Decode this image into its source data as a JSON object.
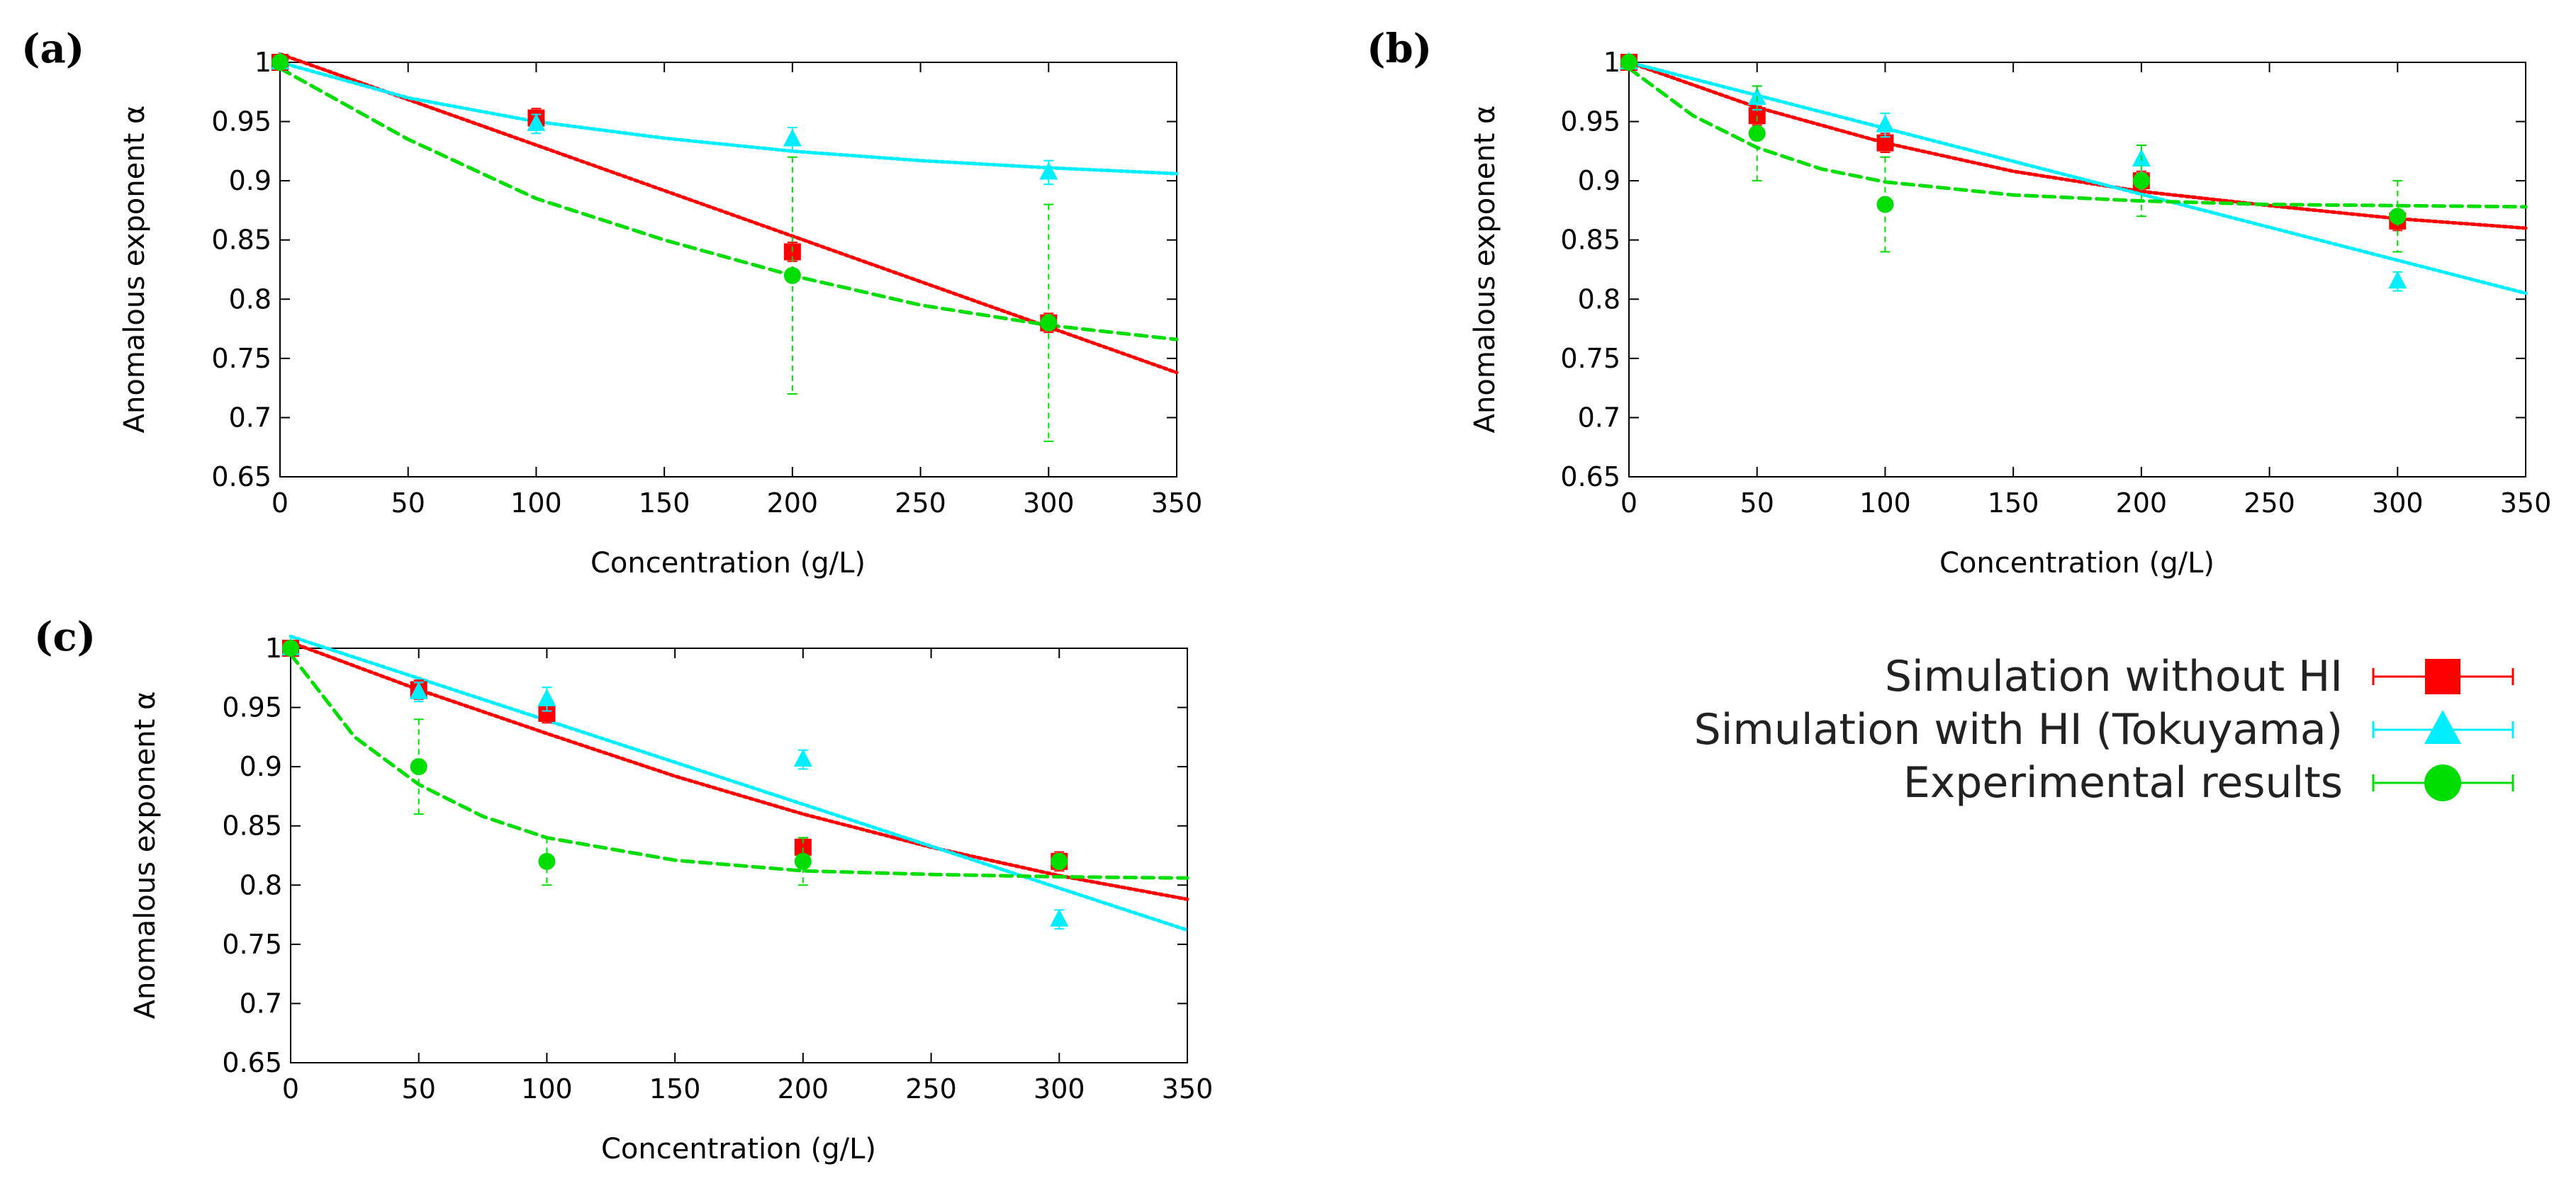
{
  "legend": {
    "entries": [
      {
        "label": "Simulation without HI",
        "color": "#ff0000",
        "marker": "square"
      },
      {
        "label": "Simulation with HI (Tokuyama)",
        "color": "#00eeff",
        "marker": "triangle"
      },
      {
        "label": "Experimental results",
        "color": "#00dd00",
        "marker": "circle"
      }
    ]
  },
  "chart_data": [
    {
      "type": "scatter",
      "panel_label": "(a)",
      "xlabel": "Concentration (g/L)",
      "ylabel": "Anomalous exponent α",
      "xlim": [
        0,
        350
      ],
      "ylim": [
        0.65,
        1
      ],
      "xticks": [
        "0",
        "50",
        "100",
        "150",
        "200",
        "250",
        "300",
        "350"
      ],
      "yticks": [
        "0.65",
        "0.7",
        "0.75",
        "0.8",
        "0.85",
        "0.9",
        "0.95",
        "1"
      ],
      "series": [
        {
          "name": "Simulation without HI",
          "color": "#ff0000",
          "marker": "square",
          "points": [
            [
              0,
              1.0,
              0.003
            ],
            [
              100,
              0.953,
              0.008
            ],
            [
              200,
              0.84,
              0.008
            ],
            [
              300,
              0.78,
              0.008
            ]
          ],
          "fit": [
            [
              0,
              1.007
            ],
            [
              350,
              0.738
            ]
          ],
          "fit_style": "dotted"
        },
        {
          "name": "Simulation with HI (Tokuyama)",
          "color": "#00eeff",
          "marker": "triangle",
          "points": [
            [
              0,
              1.0,
              0.003
            ],
            [
              100,
              0.948,
              0.008
            ],
            [
              200,
              0.935,
              0.01
            ],
            [
              300,
              0.907,
              0.01
            ]
          ],
          "fit": [
            [
              0,
              1.0
            ],
            [
              50,
              0.97
            ],
            [
              100,
              0.95
            ],
            [
              150,
              0.936
            ],
            [
              200,
              0.925
            ],
            [
              250,
              0.917
            ],
            [
              300,
              0.911
            ],
            [
              350,
              0.906
            ]
          ],
          "fit_style": "dotted"
        },
        {
          "name": "Experimental results",
          "color": "#00dd00",
          "marker": "circle",
          "points": [
            [
              0,
              1.0,
              0.0
            ],
            [
              200,
              0.82,
              0.1
            ],
            [
              300,
              0.78,
              0.1
            ]
          ],
          "fit": [
            [
              0,
              0.995
            ],
            [
              50,
              0.935
            ],
            [
              100,
              0.885
            ],
            [
              150,
              0.85
            ],
            [
              200,
              0.82
            ],
            [
              250,
              0.795
            ],
            [
              300,
              0.778
            ],
            [
              350,
              0.766
            ]
          ],
          "fit_style": "dashed"
        }
      ]
    },
    {
      "type": "scatter",
      "panel_label": "(b)",
      "xlabel": "Concentration (g/L)",
      "ylabel": "Anomalous exponent α",
      "xlim": [
        0,
        350
      ],
      "ylim": [
        0.65,
        1
      ],
      "xticks": [
        "0",
        "50",
        "100",
        "150",
        "200",
        "250",
        "300",
        "350"
      ],
      "yticks": [
        "0.65",
        "0.7",
        "0.75",
        "0.8",
        "0.85",
        "0.9",
        "0.95",
        "1"
      ],
      "series": [
        {
          "name": "Simulation without HI",
          "color": "#ff0000",
          "marker": "square",
          "points": [
            [
              0,
              1.0,
              0.003
            ],
            [
              50,
              0.955,
              0.008
            ],
            [
              100,
              0.932,
              0.008
            ],
            [
              200,
              0.9,
              0.008
            ],
            [
              300,
              0.866,
              0.008
            ]
          ],
          "fit": [
            [
              0,
              1.0
            ],
            [
              50,
              0.962
            ],
            [
              100,
              0.932
            ],
            [
              150,
              0.908
            ],
            [
              200,
              0.891
            ],
            [
              250,
              0.879
            ],
            [
              300,
              0.868
            ],
            [
              350,
              0.86
            ]
          ],
          "fit_style": "dotted"
        },
        {
          "name": "Simulation with HI (Tokuyama)",
          "color": "#00eeff",
          "marker": "triangle",
          "points": [
            [
              0,
              1.0,
              0.003
            ],
            [
              50,
              0.97,
              0.01
            ],
            [
              100,
              0.947,
              0.01
            ],
            [
              200,
              0.918,
              0.012
            ],
            [
              300,
              0.815,
              0.008
            ]
          ],
          "fit": [
            [
              0,
              1.0
            ],
            [
              350,
              0.805
            ]
          ],
          "fit_style": "dotted"
        },
        {
          "name": "Experimental results",
          "color": "#00dd00",
          "marker": "circle",
          "points": [
            [
              0,
              1.0,
              0.0
            ],
            [
              50,
              0.94,
              0.04
            ],
            [
              100,
              0.88,
              0.04
            ],
            [
              200,
              0.9,
              0.03
            ],
            [
              300,
              0.87,
              0.03
            ]
          ],
          "fit": [
            [
              0,
              0.995
            ],
            [
              25,
              0.955
            ],
            [
              50,
              0.928
            ],
            [
              75,
              0.91
            ],
            [
              100,
              0.899
            ],
            [
              150,
              0.888
            ],
            [
              200,
              0.883
            ],
            [
              250,
              0.88
            ],
            [
              300,
              0.879
            ],
            [
              350,
              0.878
            ]
          ],
          "fit_style": "dashed"
        }
      ]
    },
    {
      "type": "scatter",
      "panel_label": "(c)",
      "xlabel": "Concentration (g/L)",
      "ylabel": "Anomalous exponent α",
      "xlim": [
        0,
        350
      ],
      "ylim": [
        0.65,
        1
      ],
      "xticks": [
        "0",
        "50",
        "100",
        "150",
        "200",
        "250",
        "300",
        "350"
      ],
      "yticks": [
        "0.65",
        "0.7",
        "0.75",
        "0.8",
        "0.85",
        "0.9",
        "0.95",
        "1"
      ],
      "series": [
        {
          "name": "Simulation without HI",
          "color": "#ff0000",
          "marker": "square",
          "points": [
            [
              0,
              1.0,
              0.003
            ],
            [
              50,
              0.965,
              0.008
            ],
            [
              100,
              0.945,
              0.008
            ],
            [
              200,
              0.832,
              0.008
            ],
            [
              300,
              0.82,
              0.008
            ]
          ],
          "fit": [
            [
              0,
              1.005
            ],
            [
              50,
              0.965
            ],
            [
              100,
              0.928
            ],
            [
              150,
              0.892
            ],
            [
              200,
              0.86
            ],
            [
              250,
              0.832
            ],
            [
              300,
              0.808
            ],
            [
              350,
              0.788
            ]
          ],
          "fit_style": "dotted"
        },
        {
          "name": "Simulation with HI (Tokuyama)",
          "color": "#00eeff",
          "marker": "triangle",
          "points": [
            [
              0,
              1.0,
              0.003
            ],
            [
              50,
              0.963,
              0.008
            ],
            [
              100,
              0.957,
              0.01
            ],
            [
              200,
              0.906,
              0.008
            ],
            [
              300,
              0.771,
              0.008
            ]
          ],
          "fit": [
            [
              0,
              1.01
            ],
            [
              350,
              0.762
            ]
          ],
          "fit_style": "dotted"
        },
        {
          "name": "Experimental results",
          "color": "#00dd00",
          "marker": "circle",
          "points": [
            [
              0,
              1.0,
              0.0
            ],
            [
              50,
              0.9,
              0.04
            ],
            [
              100,
              0.82,
              0.02
            ],
            [
              200,
              0.82,
              0.02
            ],
            [
              300,
              0.82,
              0.0
            ]
          ],
          "fit": [
            [
              0,
              0.995
            ],
            [
              25,
              0.925
            ],
            [
              50,
              0.885
            ],
            [
              75,
              0.858
            ],
            [
              100,
              0.84
            ],
            [
              150,
              0.821
            ],
            [
              200,
              0.812
            ],
            [
              250,
              0.809
            ],
            [
              300,
              0.807
            ],
            [
              350,
              0.806
            ]
          ],
          "fit_style": "dashed"
        }
      ]
    }
  ]
}
